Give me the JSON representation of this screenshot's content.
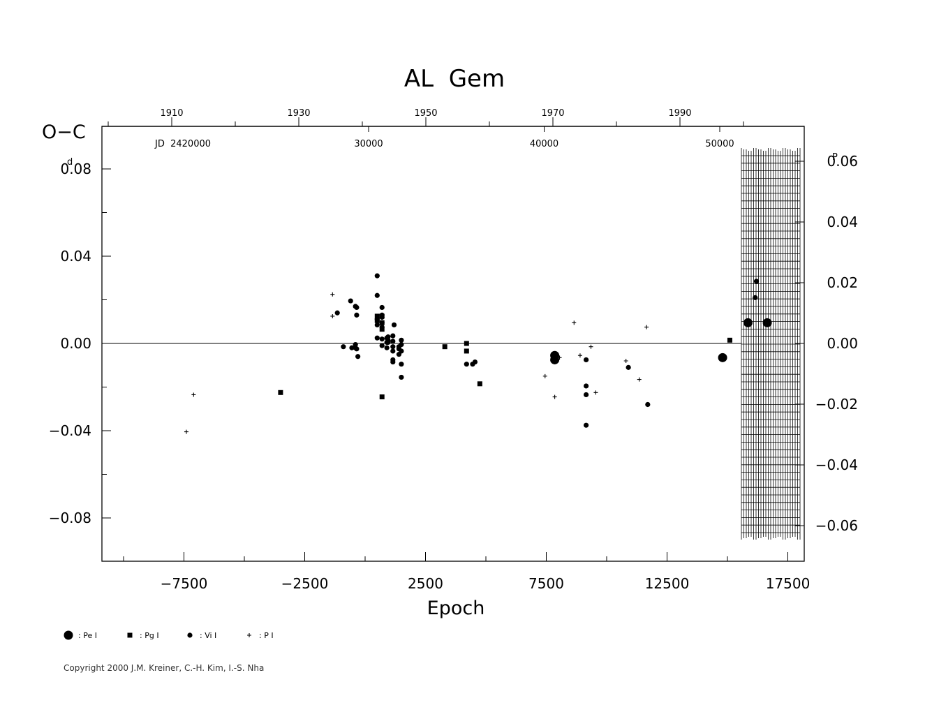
{
  "chart_data": {
    "type": "scatter",
    "title": "AL  Gem",
    "xlabel": "Epoch",
    "ylabel": "O−C",
    "ylabel_unit": "d",
    "right_unit": "P",
    "jd_label": "JD  2420000",
    "xlim": [
      -8500,
      20600
    ],
    "ylim": [
      -0.1,
      0.1
    ],
    "x_ticks": [
      -7500,
      -2500,
      2500,
      7500,
      12500,
      17500
    ],
    "x_tick_labels": [
      "−7500",
      "−2500",
      "2500",
      "7500",
      "12500",
      "17500"
    ],
    "y_ticks": [
      0.08,
      0.04,
      0.0,
      -0.04,
      -0.08
    ],
    "y_tick_labels": [
      "0.08",
      "0.04",
      "0.00",
      "−0.04",
      "−0.08"
    ],
    "right_ticks": [
      0.06,
      0.04,
      0.02,
      0.0,
      -0.02,
      -0.04,
      -0.06
    ],
    "right_tick_labels": [
      "0.06",
      "0.04",
      "0.02",
      "0.00",
      "−0.02",
      "−0.04",
      "−0.06"
    ],
    "year_ticks": [
      1910,
      1930,
      1950,
      1970,
      1990
    ],
    "year_tick_labels": [
      "1910",
      "1930",
      "1950",
      "1970",
      "1990"
    ],
    "jd_ticks": [
      30000,
      40000,
      50000
    ],
    "jd_tick_labels": [
      "30000",
      "40000",
      "50000"
    ],
    "series": [
      {
        "name": ": Pe I",
        "marker": "big-dot",
        "points": [
          [
            7850,
            -0.0075
          ],
          [
            7850,
            -0.0055
          ],
          [
            14800,
            -0.0065
          ],
          [
            15850,
            0.0095
          ],
          [
            16650,
            0.0095
          ]
        ]
      },
      {
        "name": ": Pg I",
        "marker": "square",
        "points": [
          [
            -3500,
            -0.0225
          ],
          [
            500,
            0.0125
          ],
          [
            500,
            0.0105
          ],
          [
            700,
            0.0125
          ],
          [
            700,
            0.0095
          ],
          [
            700,
            0.0065
          ],
          [
            700,
            -0.0245
          ],
          [
            3300,
            -0.0015
          ],
          [
            4200,
            0.0
          ],
          [
            4200,
            -0.0035
          ],
          [
            4750,
            -0.0185
          ],
          [
            15100,
            0.0015
          ]
        ]
      },
      {
        "name": ": Vi I",
        "marker": "dot",
        "points": [
          [
            -1150,
            0.014
          ],
          [
            -900,
            -0.0015
          ],
          [
            -600,
            0.0195
          ],
          [
            -550,
            -0.002
          ],
          [
            -400,
            0.017
          ],
          [
            -350,
            0.0165
          ],
          [
            -400,
            -0.002
          ],
          [
            -400,
            -0.0005
          ],
          [
            -350,
            -0.0025
          ],
          [
            -350,
            0.013
          ],
          [
            -300,
            -0.006
          ],
          [
            500,
            0.031
          ],
          [
            500,
            0.022
          ],
          [
            500,
            0.011
          ],
          [
            500,
            0.0085
          ],
          [
            500,
            0.0025
          ],
          [
            700,
            0.0165
          ],
          [
            700,
            0.013
          ],
          [
            700,
            0.012
          ],
          [
            700,
            0.0095
          ],
          [
            700,
            0.0075
          ],
          [
            700,
            0.002
          ],
          [
            700,
            -0.001
          ],
          [
            900,
            0.0025
          ],
          [
            900,
            0.0005
          ],
          [
            900,
            -0.002
          ],
          [
            950,
            0.003
          ],
          [
            950,
            0.0015
          ],
          [
            950,
            0.0005
          ],
          [
            1150,
            0.0035
          ],
          [
            1150,
            0.001
          ],
          [
            1150,
            -0.0015
          ],
          [
            1150,
            -0.0035
          ],
          [
            1150,
            -0.0075
          ],
          [
            1150,
            -0.0085
          ],
          [
            1200,
            0.0085
          ],
          [
            1400,
            -0.0015
          ],
          [
            1400,
            -0.0025
          ],
          [
            1400,
            -0.005
          ],
          [
            1500,
            -0.0035
          ],
          [
            1500,
            -0.0005
          ],
          [
            1500,
            0.0015
          ],
          [
            1500,
            -0.0095
          ],
          [
            1500,
            -0.0155
          ],
          [
            4200,
            -0.0095
          ],
          [
            4450,
            -0.0095
          ],
          [
            4550,
            -0.0085
          ],
          [
            7850,
            -0.0065
          ],
          [
            9150,
            -0.0075
          ],
          [
            9150,
            -0.0195
          ],
          [
            9150,
            -0.0235
          ],
          [
            9150,
            -0.0375
          ],
          [
            10900,
            -0.011
          ],
          [
            11700,
            -0.028
          ],
          [
            16150,
            0.021
          ],
          [
            16200,
            0.0285
          ]
        ]
      },
      {
        "name": ": P I",
        "marker": "plus",
        "points": [
          [
            -7100,
            -0.0235
          ],
          [
            -7400,
            -0.0405
          ],
          [
            -1350,
            0.0225
          ],
          [
            -1350,
            0.0125
          ],
          [
            7450,
            -0.015
          ],
          [
            7850,
            -0.0245
          ],
          [
            8050,
            -0.0065
          ],
          [
            8650,
            0.0095
          ],
          [
            8900,
            -0.0055
          ],
          [
            9350,
            -0.0015
          ],
          [
            9550,
            -0.0225
          ],
          [
            10800,
            -0.008
          ],
          [
            11350,
            -0.0165
          ],
          [
            11650,
            0.0075
          ]
        ]
      }
    ]
  },
  "copyright": "Copyright 2000 J.M. Kreiner, C.-H. Kim, I.-S. Nha"
}
